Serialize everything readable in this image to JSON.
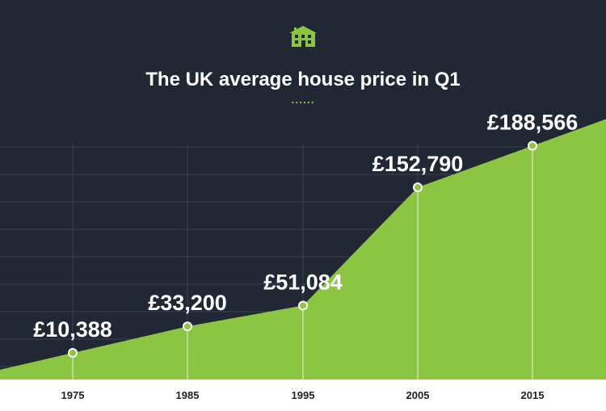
{
  "colors": {
    "background": "#222734",
    "area": "#8cc541",
    "grid": "#3a4050",
    "icon": "#8cc541",
    "text": "#ffffff",
    "axis_text": "#222222"
  },
  "header": {
    "icon": "house-icon",
    "divider": "......"
  },
  "chart_data": {
    "type": "area",
    "title": "The UK average house price in Q1",
    "categories": [
      "1975",
      "1985",
      "1995",
      "2005",
      "2015"
    ],
    "values": [
      10388,
      33200,
      51084,
      152790,
      188566
    ],
    "labels": [
      "£10,388",
      "£33,200",
      "£51,084",
      "£152,790",
      "£188,566"
    ],
    "xlabel": "",
    "ylabel": "",
    "ylim": [
      0,
      200000
    ],
    "grid": true,
    "legend": "none"
  }
}
